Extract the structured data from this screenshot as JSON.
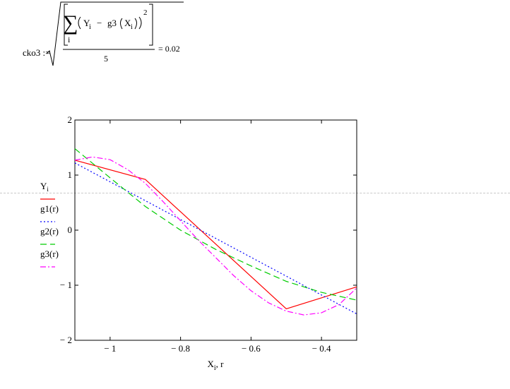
{
  "formula": {
    "lhs": "cko3 :=",
    "sum_symbol": "∑",
    "sum_index": "i",
    "term_Y": "Y",
    "term_sub_i": "i",
    "term_minus": "−",
    "term_func": "g3",
    "term_X": "X",
    "term_sub_i2": "i",
    "power": "2",
    "denominator": "5",
    "result": "= 0.02"
  },
  "legend": [
    {
      "label": "Y",
      "sub": "i",
      "color": "#ff0000",
      "dash": "solid"
    },
    {
      "label": "g1(r)",
      "sub": "",
      "color": "#0000ff",
      "dash": "dotted"
    },
    {
      "label": "g2(r)",
      "sub": "",
      "color": "#00cc00",
      "dash": "dashed"
    },
    {
      "label": "g3(r)",
      "sub": "",
      "color": "#ff00ff",
      "dash": "dashdot"
    }
  ],
  "chart_data": {
    "type": "line",
    "xlabel_main": "X",
    "xlabel_sub": "i",
    "xlabel_rest": ", r",
    "xlim": [
      -1.1,
      -0.3
    ],
    "ylim": [
      -2,
      2
    ],
    "xticks": [
      -1,
      -0.8,
      -0.6,
      -0.4
    ],
    "xtick_labels": [
      "− 1",
      "− 0.8",
      "− 0.6",
      "− 0.4"
    ],
    "yticks": [
      -2,
      -1,
      0,
      1,
      2
    ],
    "ytick_labels": [
      "− 2",
      "− 1",
      "0",
      "1",
      "2"
    ],
    "grid": false,
    "legend_position": "left",
    "series": [
      {
        "name": "Yi",
        "color": "#ff0000",
        "dash": "solid",
        "x": [
          -1.1,
          -0.9,
          -0.5,
          -0.3
        ],
        "y": [
          1.27,
          0.92,
          -1.43,
          -1.03
        ]
      },
      {
        "name": "g1(r)",
        "color": "#0000ff",
        "dash": "dotted",
        "x": [
          -1.1,
          -0.3
        ],
        "y": [
          1.22,
          -1.52
        ]
      },
      {
        "name": "g2(r)",
        "color": "#00cc00",
        "dash": "dashed",
        "x": [
          -1.1,
          -1.0,
          -0.9,
          -0.8,
          -0.7,
          -0.6,
          -0.5,
          -0.4,
          -0.3
        ],
        "y": [
          1.48,
          0.95,
          0.43,
          0.0,
          -0.35,
          -0.65,
          -0.93,
          -1.13,
          -1.27
        ]
      },
      {
        "name": "g3(r)",
        "color": "#ff00ff",
        "dash": "dashdot",
        "x": [
          -1.1,
          -1.05,
          -1.0,
          -0.95,
          -0.9,
          -0.85,
          -0.8,
          -0.75,
          -0.7,
          -0.65,
          -0.6,
          -0.55,
          -0.5,
          -0.45,
          -0.4,
          -0.35,
          -0.3
        ],
        "y": [
          1.27,
          1.33,
          1.28,
          1.1,
          0.85,
          0.52,
          0.17,
          -0.18,
          -0.5,
          -0.82,
          -1.1,
          -1.32,
          -1.47,
          -1.54,
          -1.5,
          -1.35,
          -1.05
        ]
      }
    ]
  }
}
